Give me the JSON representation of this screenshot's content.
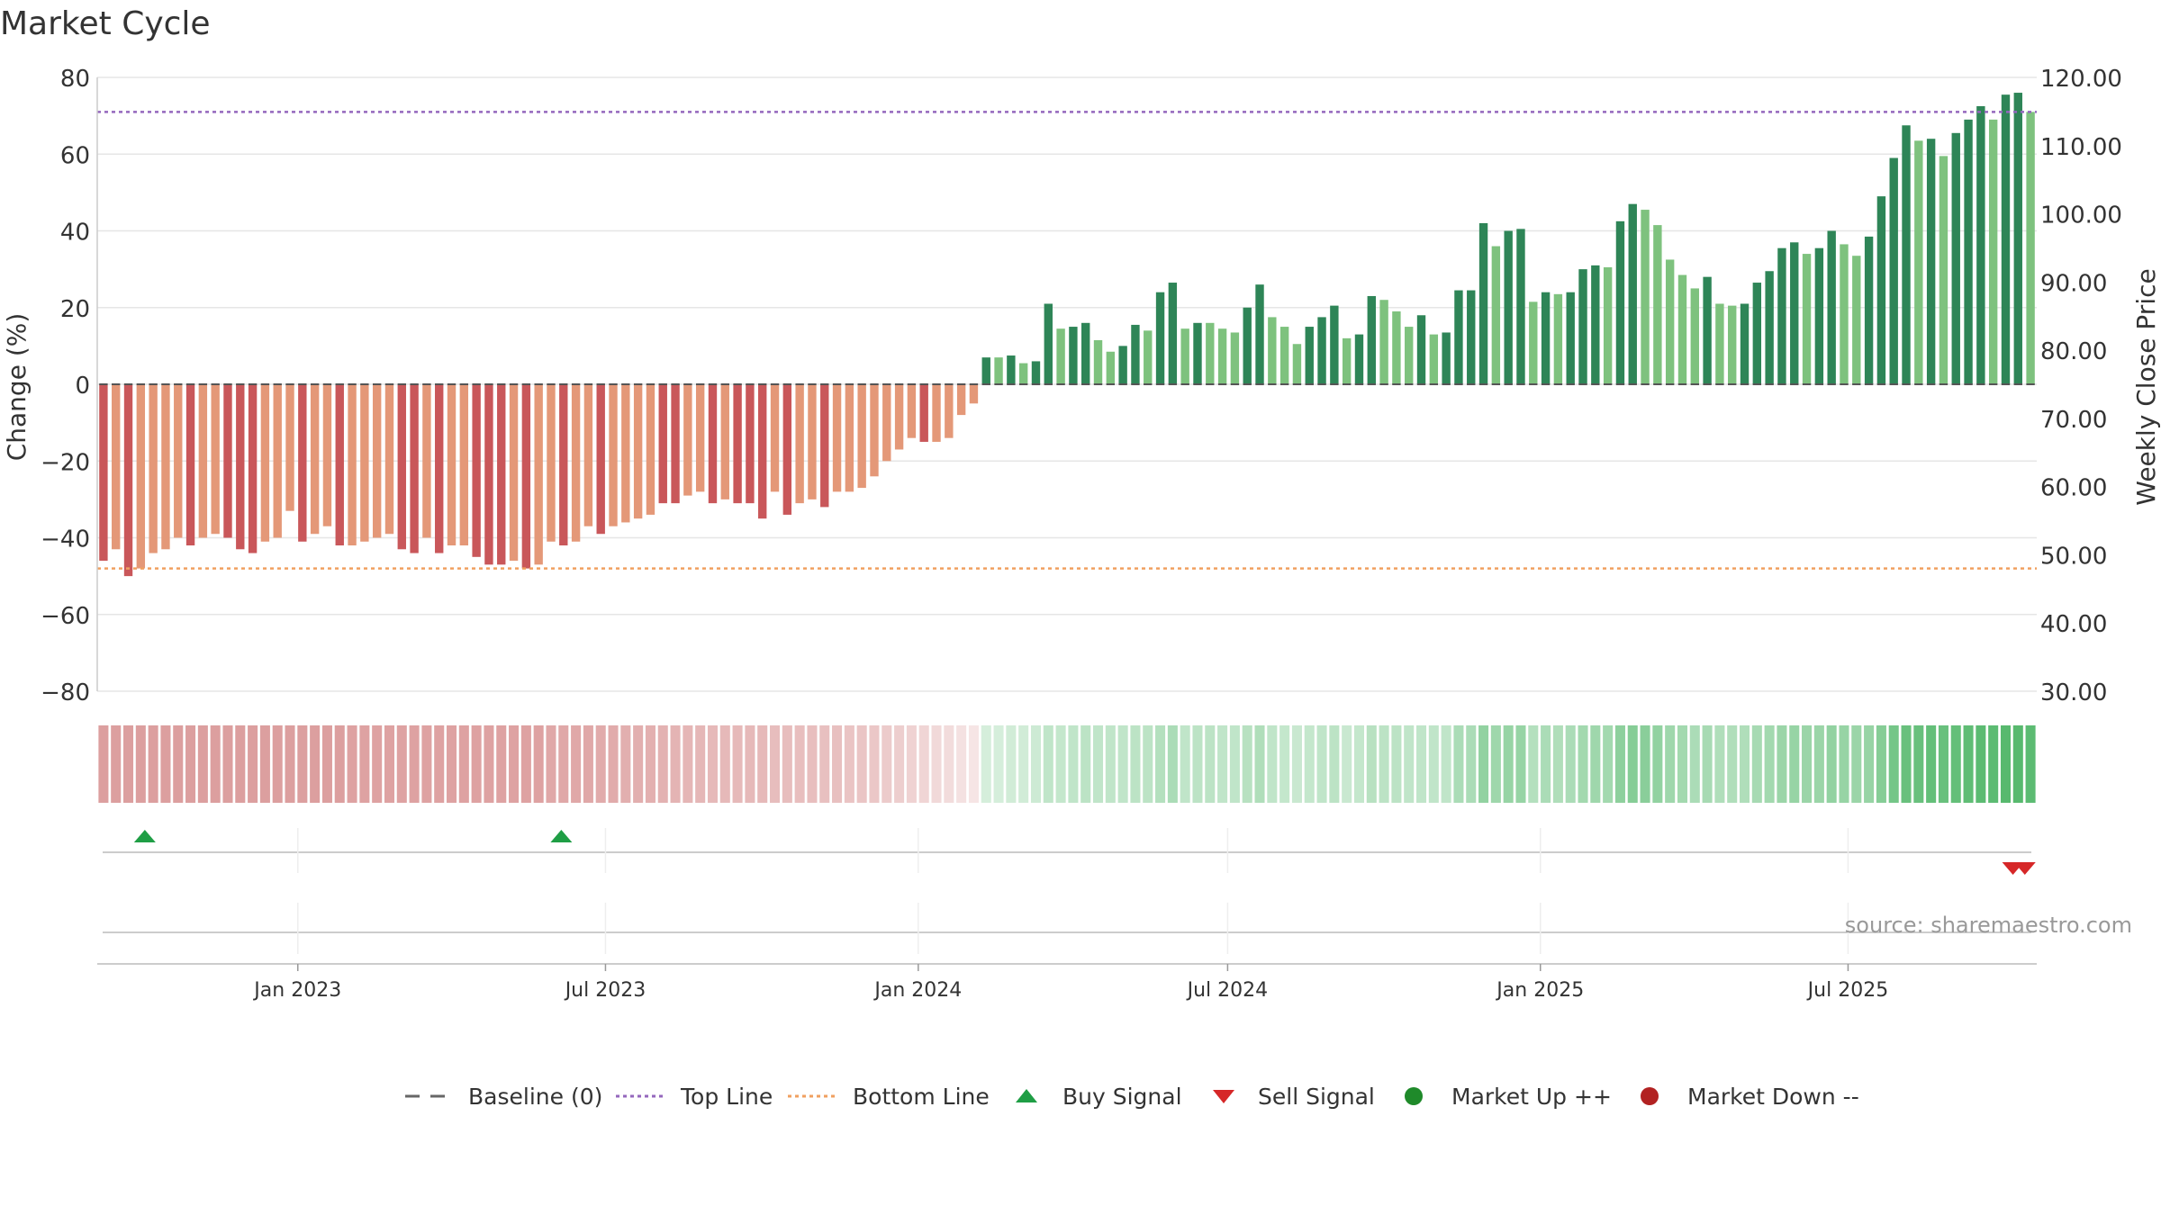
{
  "chart_data": {
    "type": "bar",
    "title": "Market Cycle",
    "ylabel": "Change (%)",
    "y2label": "Weekly Close Price",
    "ylim": [
      -80,
      80
    ],
    "yticks": [
      80,
      60,
      40,
      20,
      0,
      -20,
      -40,
      -60,
      -80
    ],
    "ytick_labels": [
      "80",
      "60",
      "40",
      "20",
      "0",
      "−20",
      "−40",
      "−60",
      "−80"
    ],
    "y2lim": [
      30,
      120
    ],
    "y2ticks": [
      120,
      110,
      100,
      90,
      80,
      70,
      60,
      50,
      40,
      30
    ],
    "y2tick_labels": [
      "120.00",
      "110.00",
      "100.00",
      "90.00",
      "80.00",
      "70.00",
      "60.00",
      "50.00",
      "40.00",
      "30.00"
    ],
    "top_line": 71,
    "bottom_line": -48,
    "grid": true,
    "legend_position": "bottom",
    "x_start": "2022-09-05",
    "x_end": "2025-10-20",
    "xticks": [
      "2023-01-01",
      "2023-07-01",
      "2024-01-01",
      "2024-07-01",
      "2025-01-01",
      "2025-07-01"
    ],
    "xtick_labels": [
      "Jan 2023",
      "Jul 2023",
      "Jan 2024",
      "Jul 2024",
      "Jan 2025",
      "Jul 2025"
    ],
    "bars": [
      -46,
      -43,
      -50,
      -48,
      -44,
      -43,
      -40,
      -42,
      -40,
      -39,
      -40,
      -43,
      -44,
      -41,
      -40,
      -33,
      -41,
      -39,
      -37,
      -42,
      -42,
      -41,
      -40,
      -39,
      -43,
      -44,
      -40,
      -44,
      -42,
      -42,
      -45,
      -47,
      -47,
      -46,
      -48,
      -47,
      -41,
      -42,
      -41,
      -37,
      -39,
      -37,
      -36,
      -35,
      -34,
      -31,
      -31,
      -29,
      -28,
      -31,
      -30,
      -31,
      -31,
      -35,
      -28,
      -34,
      -31,
      -30,
      -32,
      -28,
      -28,
      -27,
      -24,
      -20,
      -17,
      -14,
      -15,
      -15,
      -14,
      -8,
      -5,
      7,
      7,
      7.5,
      5.5,
      6,
      21,
      14.5,
      15,
      16,
      11.5,
      8.5,
      10,
      15.5,
      14,
      24,
      26.5,
      14.5,
      16,
      16,
      14.5,
      13.5,
      20,
      26,
      17.5,
      15,
      10.5,
      15,
      17.5,
      20.5,
      12,
      13,
      23,
      22,
      19,
      15,
      18,
      13,
      13.5,
      24.5,
      24.5,
      42,
      36,
      40,
      40.5,
      21.5,
      24,
      23.5,
      24,
      30,
      31,
      30.5,
      42.5,
      47,
      45.5,
      41.5,
      32.5,
      28.5,
      25,
      28,
      21,
      20.5,
      21,
      26.5,
      29.5,
      35.5,
      37,
      34,
      35.5,
      40,
      36.5,
      33.5,
      38.5,
      49,
      59,
      67.5,
      63.5,
      64,
      59.5,
      65.5,
      69,
      72.5,
      69,
      75.5,
      76,
      71
    ],
    "bar_colors": {
      "down_dark": "#c9575a",
      "down_light": "#e49878",
      "up_dark": "#2e8557",
      "up_light": "#7ec27e"
    },
    "bar_shade": [
      1,
      0,
      1,
      0,
      0,
      0,
      0,
      1,
      0,
      0,
      1,
      1,
      1,
      0,
      0,
      0,
      1,
      0,
      0,
      1,
      0,
      0,
      0,
      0,
      1,
      1,
      0,
      1,
      0,
      0,
      1,
      1,
      1,
      0,
      1,
      0,
      0,
      1,
      0,
      0,
      1,
      0,
      0,
      0,
      0,
      1,
      1,
      0,
      0,
      1,
      0,
      1,
      1,
      1,
      0,
      1,
      0,
      0,
      1,
      0,
      0,
      0,
      0,
      0,
      0,
      0,
      1,
      0,
      0,
      0,
      0,
      1,
      0,
      1,
      0,
      1,
      1,
      0,
      1,
      1,
      0,
      0,
      1,
      1,
      0,
      1,
      1,
      0,
      1,
      0,
      0,
      0,
      1,
      1,
      0,
      0,
      0,
      1,
      1,
      1,
      0,
      1,
      1,
      0,
      0,
      0,
      1,
      0,
      1,
      1,
      1,
      1,
      0,
      1,
      1,
      0,
      1,
      0,
      1,
      1,
      1,
      0,
      1,
      1,
      0,
      0,
      0,
      0,
      0,
      1,
      0,
      0,
      1,
      1,
      1,
      1,
      1,
      0,
      1,
      1,
      0,
      0,
      1,
      1,
      1,
      1,
      0,
      1,
      0,
      1,
      1,
      1,
      0,
      1,
      1,
      0
    ],
    "heat_strip": [
      0.55,
      0.55,
      0.55,
      0.55,
      0.55,
      0.55,
      0.55,
      0.55,
      0.55,
      0.55,
      0.55,
      0.55,
      0.55,
      0.55,
      0.55,
      0.55,
      0.55,
      0.55,
      0.55,
      0.55,
      0.53,
      0.53,
      0.53,
      0.53,
      0.53,
      0.53,
      0.53,
      0.53,
      0.53,
      0.53,
      0.53,
      0.53,
      0.53,
      0.53,
      0.53,
      0.53,
      0.5,
      0.5,
      0.5,
      0.5,
      0.48,
      0.48,
      0.46,
      0.46,
      0.45,
      0.44,
      0.43,
      0.42,
      0.41,
      0.4,
      0.4,
      0.4,
      0.4,
      0.4,
      0.38,
      0.38,
      0.37,
      0.37,
      0.36,
      0.36,
      0.34,
      0.33,
      0.32,
      0.3,
      0.28,
      0.26,
      0.24,
      0.22,
      0.2,
      0.17,
      0.15,
      0.2,
      0.2,
      0.22,
      0.22,
      0.24,
      0.3,
      0.28,
      0.3,
      0.32,
      0.3,
      0.3,
      0.3,
      0.32,
      0.32,
      0.36,
      0.4,
      0.3,
      0.32,
      0.32,
      0.3,
      0.3,
      0.34,
      0.38,
      0.3,
      0.28,
      0.26,
      0.28,
      0.3,
      0.32,
      0.26,
      0.28,
      0.34,
      0.32,
      0.32,
      0.3,
      0.3,
      0.3,
      0.3,
      0.4,
      0.4,
      0.52,
      0.46,
      0.5,
      0.5,
      0.36,
      0.4,
      0.38,
      0.4,
      0.44,
      0.46,
      0.44,
      0.54,
      0.58,
      0.56,
      0.52,
      0.46,
      0.44,
      0.4,
      0.42,
      0.38,
      0.38,
      0.38,
      0.42,
      0.44,
      0.48,
      0.5,
      0.48,
      0.48,
      0.52,
      0.5,
      0.48,
      0.5,
      0.58,
      0.66,
      0.72,
      0.72,
      0.74,
      0.72,
      0.74,
      0.76,
      0.78,
      0.78,
      0.8,
      0.8,
      0.78
    ],
    "heat_colors": {
      "down": "#c05050",
      "up": "#2ea84a"
    },
    "buy_signals": [
      "2022-10-03",
      "2023-06-05"
    ],
    "sell_signals": [
      "2025-10-06",
      "2025-10-13"
    ],
    "signal_colors": {
      "buy": "#1f9e45",
      "sell": "#d62728"
    },
    "legend": [
      {
        "label": "Baseline (0)",
        "kind": "dash",
        "color": "#666666"
      },
      {
        "label": "Top Line",
        "kind": "dot",
        "color": "#9467bd"
      },
      {
        "label": "Bottom Line",
        "kind": "dot",
        "color": "#f0a060"
      },
      {
        "label": "Buy Signal",
        "kind": "tri-up",
        "color": "#1f9e45"
      },
      {
        "label": "Sell Signal",
        "kind": "tri-down",
        "color": "#d62728"
      },
      {
        "label": "Market Up ++",
        "kind": "circle",
        "color": "#1f8a2a"
      },
      {
        "label": "Market Down --",
        "kind": "circle",
        "color": "#b22222"
      }
    ],
    "source": "source: sharemaestro.com"
  }
}
